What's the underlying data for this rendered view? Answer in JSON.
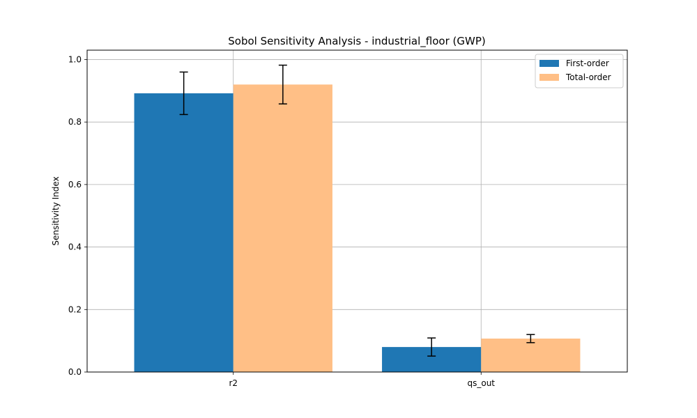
{
  "chart_data": {
    "type": "bar",
    "title": "Sobol Sensitivity Analysis - industrial_floor (GWP)",
    "xlabel": "",
    "ylabel": "Sensitivity Index",
    "categories": [
      "r2",
      "qs_out"
    ],
    "ylim": [
      0,
      1.03
    ],
    "yticks": [
      "0.0",
      "0.2",
      "0.4",
      "0.6",
      "0.8",
      "1.0"
    ],
    "grid": true,
    "legend_position": "top-right",
    "series": [
      {
        "name": "First-order",
        "color": "#1f77b4",
        "values": [
          0.892,
          0.08
        ],
        "errors": [
          0.068,
          0.029
        ]
      },
      {
        "name": "Total-order",
        "color": "#ffbf86",
        "values": [
          0.92,
          0.107
        ],
        "errors": [
          0.062,
          0.013
        ]
      }
    ]
  }
}
